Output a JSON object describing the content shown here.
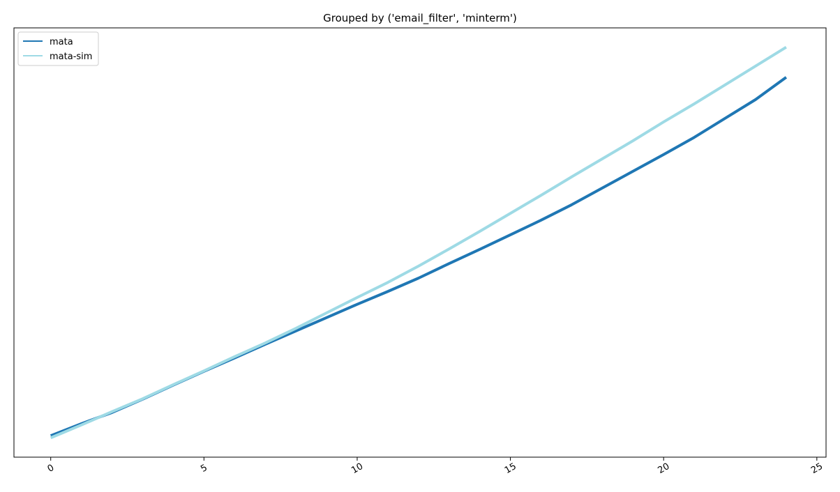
{
  "chart_data": {
    "type": "line",
    "title": "Grouped by ('email_filter', 'minterm')",
    "x": [
      0,
      1,
      2,
      3,
      4,
      5,
      6,
      7,
      8,
      9,
      10,
      11,
      12,
      13,
      14,
      15,
      16,
      17,
      18,
      19,
      20,
      21,
      22,
      23,
      24
    ],
    "series": [
      {
        "name": "mata",
        "color": "#1f77b4",
        "values": [
          5.0,
          7.8,
          10.4,
          13.5,
          16.8,
          20.0,
          23.1,
          26.3,
          29.4,
          32.5,
          35.6,
          38.6,
          41.7,
          45.1,
          48.4,
          51.8,
          55.2,
          58.8,
          62.7,
          66.6,
          70.5,
          74.5,
          78.9,
          83.3,
          88.5
        ]
      },
      {
        "name": "mata-sim",
        "color": "#9edae5",
        "values": [
          4.5,
          7.5,
          10.6,
          13.6,
          16.9,
          20.1,
          23.4,
          26.6,
          30.0,
          33.6,
          37.2,
          40.7,
          44.5,
          48.5,
          52.6,
          56.8,
          61.0,
          65.3,
          69.5,
          73.7,
          78.1,
          82.3,
          86.7,
          91.1,
          95.5
        ]
      }
    ],
    "xlim": [
      -1.2,
      25.3
    ],
    "ylim": [
      0,
      100
    ],
    "xticks": [
      0,
      5,
      10,
      15,
      20,
      25
    ],
    "legend": "upper-left"
  }
}
